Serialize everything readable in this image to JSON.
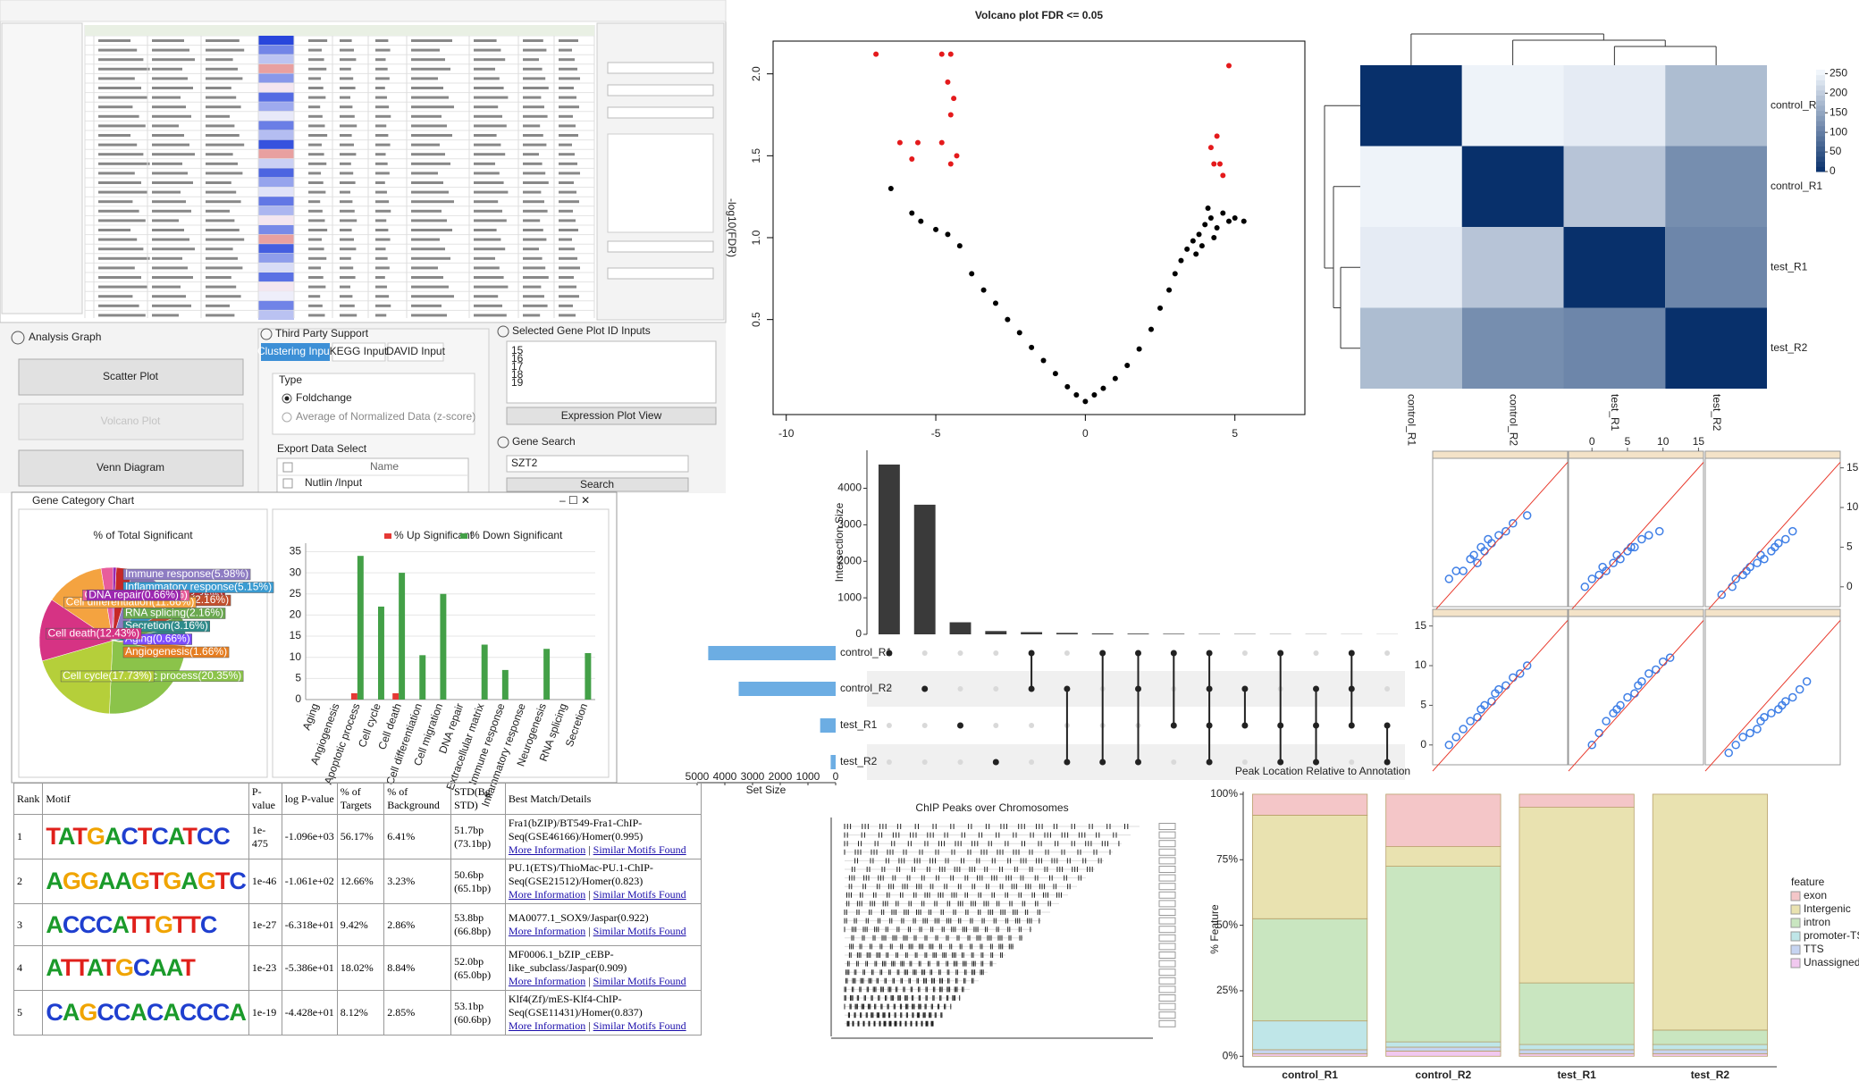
{
  "ui": {
    "analysis_graph": {
      "title": "Analysis Graph",
      "buttons": [
        "Scatter Plot",
        "Volcano Plot",
        "Venn Diagram"
      ]
    },
    "third_party": {
      "title": "Third Party Support",
      "tabs": [
        "Clustering Input",
        "KEGG Input",
        "DAVID Input"
      ],
      "type_label": "Type",
      "options": [
        "Foldchange",
        "Average of Normalized Data (z-score)"
      ],
      "export_label": "Export Data Select",
      "column": "Name",
      "rows": [
        "Nutlin /Input"
      ]
    },
    "gene_plot": {
      "title": "Selected Gene Plot ID Inputs",
      "ids": [
        "15",
        "16",
        "17",
        "18",
        "19"
      ],
      "button": "Expression Plot View"
    },
    "gene_search": {
      "title": "Gene Search",
      "query": "SZT2",
      "button": "Search"
    },
    "window_title": "Gene Category Chart"
  },
  "chart_data": [
    {
      "type": "volcano",
      "title": "Volcano plot FDR <= 0.05",
      "y_label": "-log10(FDR)",
      "xlim": [
        -10.44,
        7.34
      ],
      "ylim": [
        -0.08,
        2.2
      ],
      "xticks": [
        -10,
        -5,
        0,
        5
      ],
      "yticks": [
        {
          "value": 0.5,
          "label": "0.5"
        },
        {
          "value": 1,
          "label": "1.0"
        },
        {
          "value": 1.5,
          "label": "1.5"
        },
        {
          "value": 2,
          "label": "2.0"
        }
      ],
      "series": [
        {
          "color": "#000000",
          "x": [
            -6.5,
            -5.8,
            -5.5,
            -5,
            -4.6,
            -4.2,
            -3.8,
            -3.4,
            -3,
            -2.6,
            -2.2,
            -1.8,
            -1.4,
            -1,
            -0.6,
            -0.3,
            0,
            0.3,
            0.6,
            1,
            1.4,
            1.8,
            2.2,
            2.5,
            2.8,
            3,
            3.2,
            3.4,
            3.6,
            3.8,
            4,
            4.2,
            4.4,
            4.6,
            4.8,
            5,
            5.3,
            3.9,
            4.3,
            3.7,
            4.1
          ],
          "values": [
            1.3,
            1.15,
            1.1,
            1.05,
            1.02,
            0.95,
            0.78,
            0.68,
            0.6,
            0.5,
            0.42,
            0.33,
            0.25,
            0.17,
            0.09,
            0.04,
            0,
            0.04,
            0.08,
            0.14,
            0.22,
            0.32,
            0.44,
            0.57,
            0.68,
            0.78,
            0.86,
            0.93,
            0.98,
            1.02,
            1.08,
            1.12,
            1.06,
            1.15,
            1.1,
            1.12,
            1.1,
            0.95,
            1.0,
            0.9,
            1.18
          ]
        },
        {
          "color": "#e41a1c",
          "x": [
            -7,
            -4.8,
            -4.5,
            -4.6,
            -4.4,
            -4.5,
            -6.2,
            -5.6,
            -4.8,
            -4.5,
            -5.8,
            -4.3,
            4.2,
            4.3,
            4.5,
            4.4,
            4.8,
            4.6
          ],
          "values": [
            2.12,
            2.12,
            2.12,
            1.95,
            1.85,
            1.75,
            1.58,
            1.58,
            1.58,
            1.45,
            1.48,
            1.5,
            1.55,
            1.45,
            1.45,
            1.62,
            2.05,
            1.38
          ]
        }
      ]
    },
    {
      "type": "heatmap",
      "rows": [
        "control_R2",
        "control_R1",
        "test_R1",
        "test_R2"
      ],
      "columns": [
        "control_R1",
        "control_R2",
        "test_R1",
        "test_R2"
      ],
      "values": [
        [
          0,
          250,
          240,
          180
        ],
        [
          250,
          0,
          190,
          120
        ],
        [
          240,
          190,
          0,
          110
        ],
        [
          180,
          120,
          110,
          0
        ]
      ],
      "clim": [
        0,
        260
      ],
      "colorbar_ticks": [
        0,
        50,
        100,
        150,
        200,
        250
      ]
    },
    {
      "type": "upset",
      "y_label": "Intersection Size",
      "x_label": "Set Size",
      "sets": [
        "control_R1",
        "control_R2",
        "test_R1",
        "test_R2"
      ],
      "set_sizes": [
        4600,
        3500,
        560,
        180
      ],
      "xlim": [
        0,
        5000
      ],
      "xticks": [
        0,
        1000,
        2000,
        3000,
        4000,
        5000
      ],
      "values": [
        4650,
        3550,
        330,
        90,
        60,
        40,
        25,
        20,
        15,
        10,
        8,
        6,
        5,
        4,
        3
      ],
      "ylim": [
        0,
        5040
      ],
      "yticks": [
        0,
        1000,
        2000,
        3000,
        4000
      ],
      "intersections": [
        [
          0
        ],
        [
          1
        ],
        [
          2
        ],
        [
          3
        ],
        [
          0,
          1
        ],
        [
          1,
          3
        ],
        [
          0,
          3
        ],
        [
          0,
          1,
          3
        ],
        [
          0,
          2
        ],
        [
          0,
          1,
          2,
          3
        ],
        [
          1,
          2
        ],
        [
          0,
          2,
          3
        ],
        [
          1,
          2,
          3
        ],
        [
          0,
          1,
          2
        ],
        [
          2,
          3
        ]
      ],
      "color": "#3a3a3a",
      "set_color": "#6cade3"
    },
    {
      "type": "scatter",
      "xlim": [
        -3.3,
        15.7
      ],
      "ylim": [
        -2.5,
        16.2
      ],
      "xticks": [
        0,
        5,
        10,
        15
      ],
      "yticks": [
        0,
        5,
        10,
        15
      ],
      "color": "#3f7fe6",
      "line_color": "#e8392c",
      "panels": [
        {
          "x": [
            -1,
            0,
            1,
            2,
            2.5,
            3,
            3.5,
            4,
            4.5,
            5,
            6,
            7,
            8,
            10
          ],
          "values": [
            1,
            2,
            2,
            3.5,
            4,
            3,
            5,
            4.5,
            6,
            5.5,
            6.5,
            7,
            8,
            9
          ]
        },
        {
          "x": [
            -1,
            0,
            1,
            1.5,
            2,
            3,
            3.5,
            4,
            5,
            5.5,
            6,
            7,
            8,
            9.5
          ],
          "values": [
            0,
            1,
            1.5,
            2.5,
            2,
            3,
            4,
            3.5,
            4.5,
            5,
            5,
            6,
            6.5,
            7
          ]
        },
        {
          "x": [
            -1,
            0.5,
            1,
            2,
            2.5,
            3,
            4,
            4.5,
            5,
            6,
            6.5,
            7,
            8,
            9
          ],
          "values": [
            -1,
            0,
            1,
            1.5,
            2,
            2.5,
            3,
            4,
            3.5,
            4.5,
            5,
            5.5,
            6,
            7
          ]
        },
        {
          "x": [
            -1,
            0,
            1,
            2,
            3,
            3.5,
            4,
            5,
            5.5,
            6,
            7,
            8,
            9,
            10
          ],
          "values": [
            0,
            1,
            2,
            3,
            3.5,
            4.5,
            5,
            5.5,
            6.5,
            7,
            7.5,
            8.5,
            9,
            10
          ]
        },
        {
          "x": [
            0,
            1,
            2,
            3,
            3.5,
            4,
            5,
            6,
            6.5,
            7,
            8,
            9,
            10,
            11
          ],
          "values": [
            0,
            1.5,
            3,
            4,
            4.5,
            5,
            6,
            6.5,
            7.5,
            8,
            9,
            9.5,
            10.5,
            11
          ]
        },
        {
          "x": [
            0,
            1,
            2,
            3,
            4,
            4.5,
            5,
            6,
            7,
            7.5,
            8,
            9,
            10,
            11
          ],
          "values": [
            -1,
            0,
            1,
            1.5,
            2,
            3,
            3.5,
            4,
            4.5,
            5,
            5.5,
            6,
            7,
            8
          ]
        }
      ]
    },
    {
      "type": "ideogram",
      "title": "ChIP Peaks over Chromosomes"
    },
    {
      "type": "stacked_bar",
      "title": "Peak Location Relative to Annotation",
      "y_label": "% Feature",
      "legend_title": "feature",
      "categories": [
        "control_R1",
        "control_R2",
        "test_R1",
        "test_R2"
      ],
      "series": [
        {
          "name": "exon",
          "color": "#f4c6c8",
          "values": [
            8,
            20,
            5,
            0
          ]
        },
        {
          "name": "Intergenic",
          "color": "#e9e2b0",
          "values": [
            39.5,
            7.5,
            67,
            90
          ]
        },
        {
          "name": "intron",
          "color": "#c9e6c0",
          "values": [
            39,
            67,
            23.5,
            5.5
          ]
        },
        {
          "name": "promoter-TSS",
          "color": "#bfe6e8",
          "values": [
            11,
            2,
            2,
            2
          ]
        },
        {
          "name": "TTS",
          "color": "#c6d4f1",
          "values": [
            1.5,
            1.5,
            1.5,
            1.5
          ]
        },
        {
          "name": "Unassigned",
          "color": "#f1c8ef",
          "values": [
            1,
            2,
            1,
            1
          ]
        }
      ],
      "ylim": [
        -4,
        101
      ],
      "yticks": [
        {
          "value": 0,
          "label": "0%"
        },
        {
          "value": 25,
          "label": "25%"
        },
        {
          "value": 50,
          "label": "50%"
        },
        {
          "value": 75,
          "label": "75%"
        },
        {
          "value": 100,
          "label": "100%"
        }
      ]
    },
    {
      "type": "pie",
      "title": "% of Total Significant",
      "values": [
        3.35,
        5.98,
        5.15,
        2.16,
        2.16,
        3.16,
        0.66,
        1.66,
        20.35,
        17.73,
        12.43,
        11.66,
        2.33,
        0.66
      ],
      "value_labels": [
        "Extracellular matrix(3.35%)",
        "Immune response(5.98%)",
        "Inflammatory response(5.15%)",
        "Neurogenesis(2.16%)",
        "RNA splicing(2.16%)",
        "Secretion(3.16%)",
        "Aging(0.66%)",
        "Angiogenesis(1.66%)",
        "Apoptotic process(20.35%)",
        "Cell cycle(17.73%)",
        "Cell death(12.43%)",
        "Cell differentiation(11.66%)",
        "Cell migration(2.33%)",
        "DNA repair(0.66%)"
      ],
      "colors": [
        "#c62828",
        "#8e7cc3",
        "#3b9bd1",
        "#c1502e",
        "#6aa84f",
        "#2e8b8b",
        "#7c4dff",
        "#e67e22",
        "#8bc34a",
        "#b5cf3a",
        "#d63384",
        "#f4a340",
        "#e85d9c",
        "#9c27b0"
      ]
    },
    {
      "type": "bar",
      "categories": [
        "Aging",
        "Angiogenesis",
        "Apoptotic process",
        "Cell cycle",
        "Cell death",
        "Cell differentiation",
        "Cell migration",
        "DNA repair",
        "Extracellular matrix",
        "Immune response",
        "Inflammatory response",
        "Neurogenesis",
        "RNA splicing",
        "Secretion"
      ],
      "series": [
        {
          "name": "% Up Significant",
          "color": "#e53935",
          "values": [
            0,
            0,
            1.5,
            0,
            1.5,
            0,
            0,
            0,
            0,
            0,
            0,
            0,
            0,
            0
          ]
        },
        {
          "name": "% Down Significant",
          "color": "#43a047",
          "values": [
            0,
            0,
            34,
            22,
            30,
            10.5,
            25,
            0,
            13,
            7,
            0,
            12,
            0,
            11
          ]
        }
      ],
      "ylim": [
        0,
        37
      ],
      "yticks": [
        0,
        5,
        10,
        15,
        20,
        25,
        30,
        35
      ],
      "grid": true
    }
  ],
  "motif_table": {
    "columns": [
      "Rank",
      "Motif",
      "P-value",
      "log P-value",
      "% of Targets",
      "% of Background",
      "STD(Bg STD)",
      "Best Match/Details"
    ],
    "links": [
      "More Information",
      "Similar Motifs Found"
    ],
    "rows": [
      [
        "1",
        "TATGACTCATCC",
        "1e-475",
        "-1.096e+03",
        "56.17%",
        "6.41%",
        "51.7bp (73.1bp)",
        "Fra1(bZIP)/BT549-Fra1-ChIP-Seq(GSE46166)/Homer(0.995)"
      ],
      [
        "2",
        "AGGAAGTGAGTC",
        "1e-46",
        "-1.061e+02",
        "12.66%",
        "3.23%",
        "50.6bp (65.1bp)",
        "PU.1(ETS)/ThioMac-PU.1-ChIP-Seq(GSE21512)/Homer(0.823)"
      ],
      [
        "3",
        "ACCCATTGTTC",
        "1e-27",
        "-6.318e+01",
        "9.42%",
        "2.86%",
        "53.8bp (66.8bp)",
        "MA0077.1_SOX9/Jaspar(0.922)"
      ],
      [
        "4",
        "ATTATGCAAT",
        "1e-23",
        "-5.386e+01",
        "18.02%",
        "8.84%",
        "52.0bp (65.0bp)",
        "MF0006.1_bZIP_cEBP-like_subclass/Jaspar(0.909)"
      ],
      [
        "5",
        "CAGCCACACCCA",
        "1e-19",
        "-4.428e+01",
        "8.12%",
        "2.85%",
        "53.1bp (60.6bp)",
        "Klf4(Zf)/mES-Klf4-ChIP-Seq(GSE11431)/Homer(0.837)"
      ]
    ]
  }
}
